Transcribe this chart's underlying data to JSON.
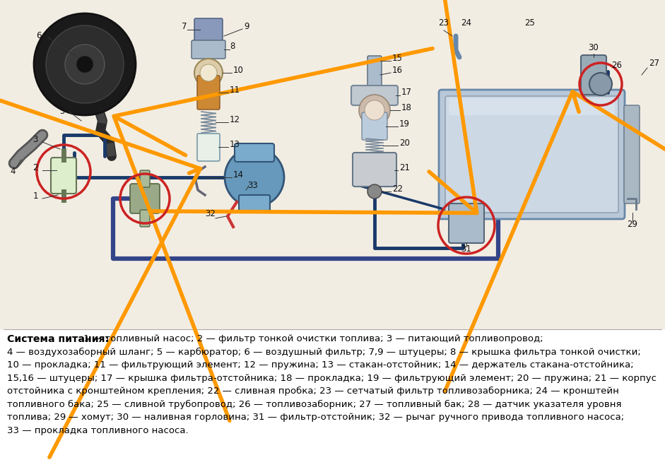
{
  "bg_color": "#ffffff",
  "title_bold": "Система питания:",
  "caption_lines": [
    " 1 — топливный насос; 2 — фильтр тонкой очистки топлива; 3 — питающий топливопровод;",
    "4 — воздухозаборный шланг; 5 — карбюратор; 6 — воздушный фильтр; 7,9 — штуцеры; 8 — крышка фильтра тонкой очистки;",
    "10 — прокладка; 11 — фильтрующий элемент; 12 — пружина; 13 — стакан-отстойник; 14 — держатель стакана-отстойника;",
    "15,16 — штуцеры; 17 — крышка фильтра-отстойника; 18 — прокладка; 19 — фильтрующий элемент; 20 — пружина; 21 — корпус",
    "отстойника с кронштейном крепления; 22 — сливная пробка; 23 — сетчатый фильтр топливозаборника; 24 — кронштейн",
    "топливного бака; 25 — сливной трубопровод; 26 — топливозаборник; 27 — топливный бак; 28 — датчик указателя уровня",
    "топлива; 29 — хомут; 30 — наливная горловина; 31 — фильтр-отстойник; 32 — рычаг ручного привода топливного насоса;",
    "33 — прокладка топливного насоса."
  ],
  "text_color": "#000000",
  "font_size_caption": 9.5,
  "font_size_title": 10.2,
  "diagram_bg": "#f2ede3"
}
